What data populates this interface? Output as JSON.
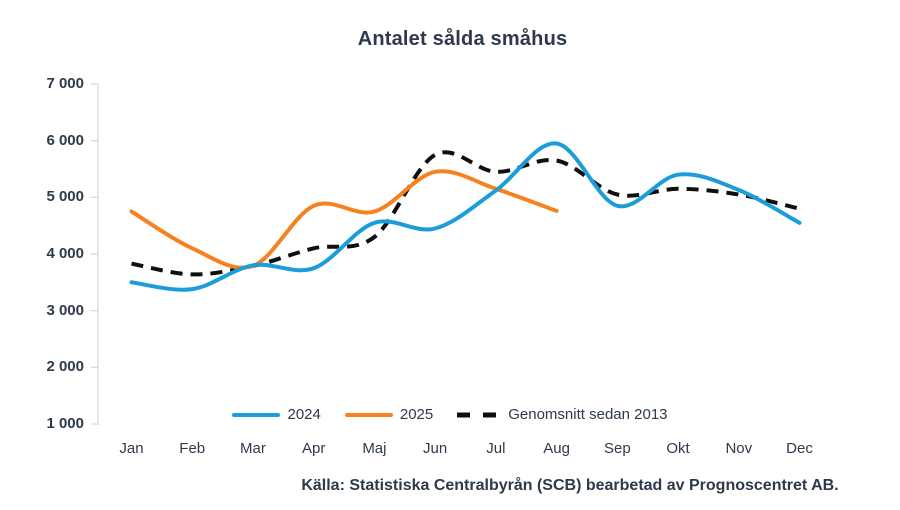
{
  "chart_data": {
    "type": "line",
    "title": "Antalet sålda småhus",
    "source": "Källa: Statistiska Centralbyrån (SCB) bearbetad av Prognoscentret AB.",
    "categories": [
      "Jan",
      "Feb",
      "Mar",
      "Apr",
      "Maj",
      "Jun",
      "Jul",
      "Aug",
      "Sep",
      "Okt",
      "Nov",
      "Dec"
    ],
    "yticks": [
      7000,
      6000,
      5000,
      4000,
      3000,
      2000,
      1000
    ],
    "ytick_labels": [
      "7 000",
      "6 000",
      "5 000",
      "4 000",
      "3 000",
      "2 000",
      "1 000"
    ],
    "ylim": [
      1000,
      7000
    ],
    "grid": false,
    "legend_position": "bottom",
    "xlabel": "",
    "ylabel": "",
    "series": [
      {
        "name": "2024",
        "style": "solid",
        "color": "#1b9dd9",
        "values": [
          3500,
          3380,
          3800,
          3750,
          4550,
          4450,
          5120,
          5950,
          4850,
          5400,
          5130,
          4550
        ]
      },
      {
        "name": "2025",
        "style": "solid",
        "color": "#f5821f",
        "values": [
          4750,
          4100,
          3790,
          4850,
          4750,
          5450,
          5150,
          4760
        ]
      },
      {
        "name": "Genomsnitt sedan 2013",
        "style": "dashed",
        "color": "#0f0f0f",
        "values": [
          3830,
          3640,
          3790,
          4100,
          4300,
          5750,
          5450,
          5650,
          5050,
          5150,
          5050,
          4800
        ]
      }
    ],
    "axis_color": "#d9d9d9",
    "text_color": "#2d3a4b"
  }
}
